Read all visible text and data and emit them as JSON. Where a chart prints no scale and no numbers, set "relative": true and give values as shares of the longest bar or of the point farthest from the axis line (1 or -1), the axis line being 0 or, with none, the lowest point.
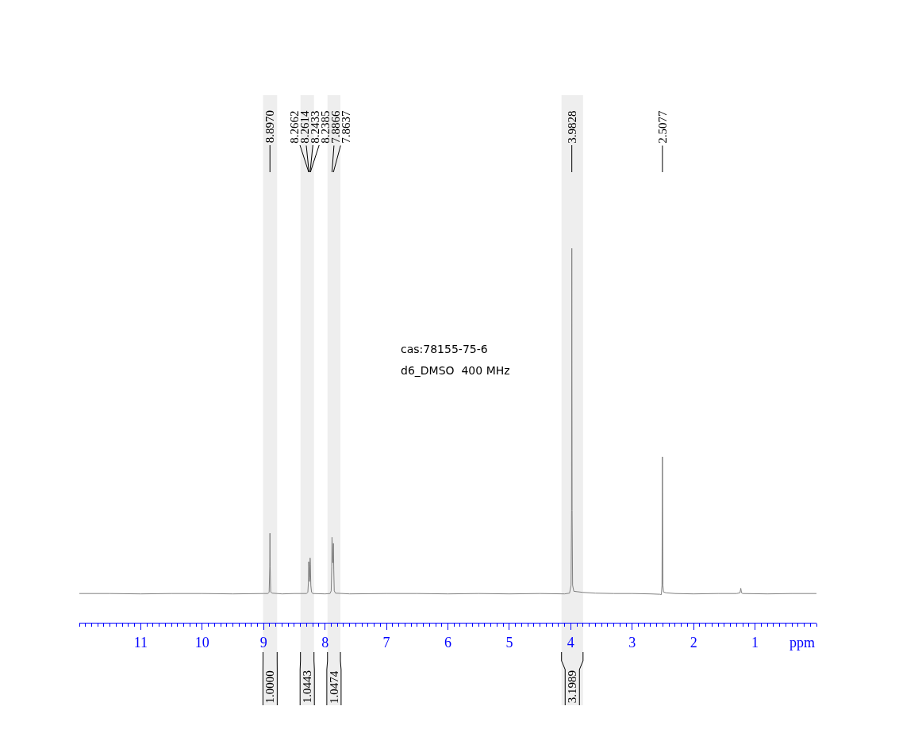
{
  "chart_data": {
    "type": "line",
    "relative": true,
    "xlabel": "ppm",
    "xlim": [
      12,
      0
    ],
    "xticks": [
      {
        "value": 12,
        "label": null
      },
      {
        "value": 11.9,
        "label": null
      },
      {
        "value": 11.8,
        "label": null
      },
      {
        "value": 11.7,
        "label": null
      },
      {
        "value": 11.6,
        "label": null
      },
      {
        "value": 11.5,
        "label": null
      },
      {
        "value": 11.4,
        "label": null
      },
      {
        "value": 11.3,
        "label": null
      },
      {
        "value": 11.2,
        "label": null
      },
      {
        "value": 11.1,
        "label": null
      },
      11,
      {
        "value": 10.9,
        "label": null
      },
      {
        "value": 10.8,
        "label": null
      },
      {
        "value": 10.7,
        "label": null
      },
      {
        "value": 10.6,
        "label": null
      },
      {
        "value": 10.5,
        "label": null
      },
      {
        "value": 10.4,
        "label": null
      },
      {
        "value": 10.3,
        "label": null
      },
      {
        "value": 10.2,
        "label": null
      },
      {
        "value": 10.1,
        "label": null
      },
      10,
      {
        "value": 9.9,
        "label": null
      },
      {
        "value": 9.8,
        "label": null
      },
      {
        "value": 9.7,
        "label": null
      },
      {
        "value": 9.6,
        "label": null
      },
      {
        "value": 9.5,
        "label": null
      },
      {
        "value": 9.4,
        "label": null
      },
      {
        "value": 9.3,
        "label": null
      },
      {
        "value": 9.2,
        "label": null
      },
      {
        "value": 9.1,
        "label": null
      },
      9,
      {
        "value": 8.9,
        "label": null
      },
      {
        "value": 8.8,
        "label": null
      },
      {
        "value": 8.7,
        "label": null
      },
      {
        "value": 8.6,
        "label": null
      },
      {
        "value": 8.5,
        "label": null
      },
      {
        "value": 8.4,
        "label": null
      },
      {
        "value": 8.3,
        "label": null
      },
      {
        "value": 8.2,
        "label": null
      },
      {
        "value": 8.1,
        "label": null
      },
      8,
      {
        "value": 7.9,
        "label": null
      },
      {
        "value": 7.8,
        "label": null
      },
      {
        "value": 7.7,
        "label": null
      },
      {
        "value": 7.6,
        "label": null
      },
      {
        "value": 7.5,
        "label": null
      },
      {
        "value": 7.4,
        "label": null
      },
      {
        "value": 7.3,
        "label": null
      },
      {
        "value": 7.2,
        "label": null
      },
      {
        "value": 7.1,
        "label": null
      },
      7,
      {
        "value": 6.9,
        "label": null
      },
      {
        "value": 6.8,
        "label": null
      },
      {
        "value": 6.7,
        "label": null
      },
      {
        "value": 6.6,
        "label": null
      },
      {
        "value": 6.5,
        "label": null
      },
      {
        "value": 6.4,
        "label": null
      },
      {
        "value": 6.3,
        "label": null
      },
      {
        "value": 6.2,
        "label": null
      },
      {
        "value": 6.1,
        "label": null
      },
      6,
      {
        "value": 5.9,
        "label": null
      },
      {
        "value": 5.8,
        "label": null
      },
      {
        "value": 5.7,
        "label": null
      },
      {
        "value": 5.6,
        "label": null
      },
      {
        "value": 5.5,
        "label": null
      },
      {
        "value": 5.4,
        "label": null
      },
      {
        "value": 5.3,
        "label": null
      },
      {
        "value": 5.2,
        "label": null
      },
      {
        "value": 5.1,
        "label": null
      },
      5,
      {
        "value": 4.9,
        "label": null
      },
      {
        "value": 4.8,
        "label": null
      },
      {
        "value": 4.7,
        "label": null
      },
      {
        "value": 4.6,
        "label": null
      },
      {
        "value": 4.5,
        "label": null
      },
      {
        "value": 4.4,
        "label": null
      },
      {
        "value": 4.3,
        "label": null
      },
      {
        "value": 4.2,
        "label": null
      },
      {
        "value": 4.1,
        "label": null
      },
      4,
      {
        "value": 3.9,
        "label": null
      },
      {
        "value": 3.8,
        "label": null
      },
      {
        "value": 3.7,
        "label": null
      },
      {
        "value": 3.6,
        "label": null
      },
      {
        "value": 3.5,
        "label": null
      },
      {
        "value": 3.4,
        "label": null
      },
      {
        "value": 3.3,
        "label": null
      },
      {
        "value": 3.2,
        "label": null
      },
      {
        "value": 3.1,
        "label": null
      },
      3,
      {
        "value": 2.9,
        "label": null
      },
      {
        "value": 2.8,
        "label": null
      },
      {
        "value": 2.7,
        "label": null
      },
      {
        "value": 2.6,
        "label": null
      },
      {
        "value": 2.5,
        "label": null
      },
      {
        "value": 2.4,
        "label": null
      },
      {
        "value": 2.3,
        "label": null
      },
      {
        "value": 2.2,
        "label": null
      },
      {
        "value": 2.1,
        "label": null
      },
      2,
      {
        "value": 1.9,
        "label": null
      },
      {
        "value": 1.8,
        "label": null
      },
      {
        "value": 1.7,
        "label": null
      },
      {
        "value": 1.6,
        "label": null
      },
      {
        "value": 1.5,
        "label": null
      },
      {
        "value": 1.4,
        "label": null
      },
      {
        "value": 1.3,
        "label": null
      },
      {
        "value": 1.2,
        "label": null
      },
      {
        "value": 1.1,
        "label": null
      },
      1,
      {
        "value": 0.9,
        "label": null
      },
      {
        "value": 0.8,
        "label": null
      },
      {
        "value": 0.7,
        "label": null
      },
      {
        "value": 0.6,
        "label": null
      },
      {
        "value": 0.5,
        "label": null
      },
      {
        "value": 0.4,
        "label": null
      },
      {
        "value": 0.3,
        "label": null
      },
      {
        "value": 0.2,
        "label": null
      },
      {
        "value": 0.1,
        "label": null
      },
      {
        "value": 0,
        "label": null
      }
    ],
    "series": [
      {
        "color": "#808080",
        "x": [
          12,
          11.5,
          11,
          10.5,
          10,
          9.5,
          9,
          8.93,
          8.91,
          8.9,
          8.897,
          8.894,
          8.885,
          8.86,
          8.7,
          8.5,
          8.3,
          8.28,
          8.27,
          8.2662,
          8.2614,
          8.255,
          8.2485,
          8.2433,
          8.2385,
          8.232,
          8.22,
          8.2,
          8,
          7.92,
          7.9,
          7.891,
          7.8866,
          7.876,
          7.8637,
          7.858,
          7.85,
          7.83,
          7.6,
          7,
          6.5,
          6,
          5.5,
          5,
          4.5,
          4.1,
          4.02,
          3.995,
          3.987,
          3.9828,
          3.978,
          3.97,
          3.95,
          3.9,
          3.8,
          3.6,
          3.3,
          3,
          2.7,
          2.55,
          2.525,
          2.515,
          2.5077,
          2.5,
          2.49,
          2.45,
          2.3,
          2,
          1.6,
          1.3,
          1.245,
          1.232,
          1.22,
          1.2,
          0.8,
          0.4,
          0
        ],
        "values": [
          0.078,
          0.078,
          0.077,
          0.078,
          0.078,
          0.077,
          0.078,
          0.078,
          0.082,
          0.15,
          0.239,
          0.15,
          0.082,
          0.079,
          0.077,
          0.078,
          0.078,
          0.082,
          0.11,
          0.163,
          0.15,
          0.11,
          0.12,
          0.173,
          0.155,
          0.1,
          0.082,
          0.078,
          0.077,
          0.078,
          0.085,
          0.15,
          0.228,
          0.16,
          0.212,
          0.14,
          0.085,
          0.079,
          0.077,
          0.078,
          0.078,
          0.077,
          0.078,
          0.077,
          0.078,
          0.077,
          0.079,
          0.1,
          0.3,
          1,
          0.3,
          0.1,
          0.084,
          0.083,
          0.081,
          0.079,
          0.078,
          0.078,
          0.077,
          0.076,
          0.075,
          0.1,
          0.443,
          0.1,
          0.082,
          0.08,
          0.078,
          0.077,
          0.078,
          0.078,
          0.08,
          0.092,
          0.08,
          0.078,
          0.077,
          0.078,
          0.078
        ]
      }
    ],
    "annotations": [
      {
        "text": "8.8970",
        "x": 8.897
      },
      {
        "text": "8.2662",
        "x": 8.2662
      },
      {
        "text": "8.2614",
        "x": 8.2614
      },
      {
        "text": "8.2433",
        "x": 8.2433
      },
      {
        "text": "8.2385",
        "x": 8.2385
      },
      {
        "text": "7.8866",
        "x": 7.8866
      },
      {
        "text": "7.8637",
        "x": 7.8637
      },
      {
        "text": "3.9828",
        "x": 3.9828
      },
      {
        "text": "2.5077",
        "x": 2.5077
      },
      "cas:78155-75-6",
      "d6_DMSO  400 MHz"
    ],
    "bands": [
      {
        "axis": "x",
        "from": 9.01,
        "to": 8.78,
        "label": "1.0000"
      },
      {
        "axis": "x",
        "from": 8.4,
        "to": 8.18,
        "label": "1.0443"
      },
      {
        "axis": "x",
        "from": 7.96,
        "to": 7.75,
        "label": "1.0474"
      },
      {
        "axis": "x",
        "from": 4.15,
        "to": 3.8,
        "label": "3.1989"
      }
    ]
  }
}
